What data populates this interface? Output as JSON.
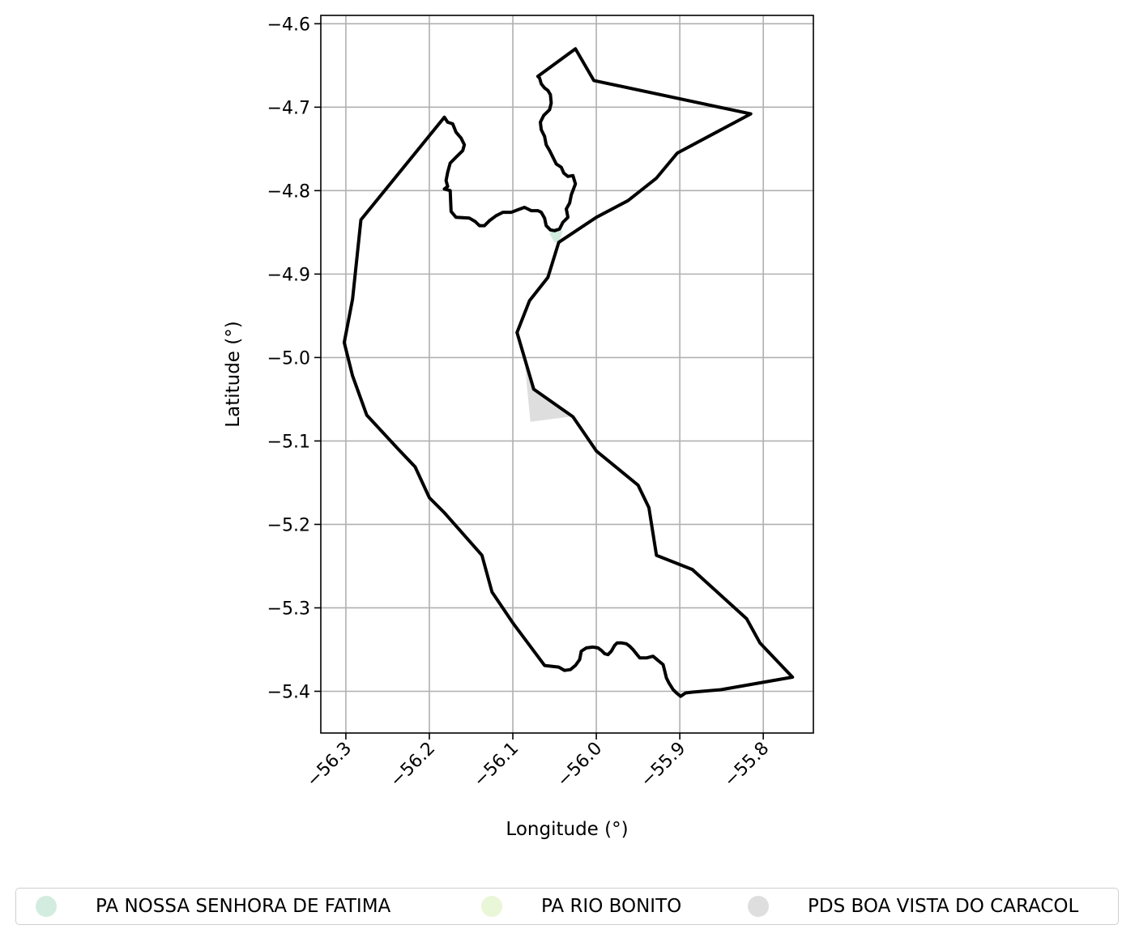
{
  "map": {
    "xlabel": "Longitude (°)",
    "ylabel": "Latitude (°)",
    "xlim": [
      -56.33,
      -55.74
    ],
    "ylim": [
      -5.45,
      -4.59
    ],
    "grid": true,
    "x_ticks": [
      -56.3,
      -56.2,
      -56.1,
      -56.0,
      -55.9,
      -55.8
    ],
    "x_tick_labels": [
      "−56.3",
      "−56.2",
      "−56.1",
      "−56.0",
      "−55.9",
      "−55.8"
    ],
    "y_ticks": [
      -4.6,
      -4.7,
      -4.8,
      -4.9,
      -5.0,
      -5.1,
      -5.2,
      -5.3,
      -5.4
    ],
    "y_tick_labels": [
      "−4.6",
      "−4.7",
      "−4.8",
      "−4.9",
      "−5.0",
      "−5.1",
      "−5.2",
      "−5.3",
      "−5.4"
    ],
    "boundary_color": "#000000",
    "boundary": [
      [
        -56.282,
        -4.835
      ],
      [
        -56.182,
        -4.712
      ],
      [
        -56.178,
        -4.718
      ],
      [
        -56.172,
        -4.72
      ],
      [
        -56.168,
        -4.73
      ],
      [
        -56.162,
        -4.737
      ],
      [
        -56.158,
        -4.745
      ],
      [
        -56.16,
        -4.752
      ],
      [
        -56.168,
        -4.76
      ],
      [
        -56.175,
        -4.767
      ],
      [
        -56.178,
        -4.778
      ],
      [
        -56.18,
        -4.788
      ],
      [
        -56.178,
        -4.795
      ],
      [
        -56.182,
        -4.798
      ],
      [
        -56.175,
        -4.8
      ],
      [
        -56.174,
        -4.825
      ],
      [
        -56.168,
        -4.832
      ],
      [
        -56.152,
        -4.833
      ],
      [
        -56.145,
        -4.837
      ],
      [
        -56.14,
        -4.842
      ],
      [
        -56.134,
        -4.842
      ],
      [
        -56.128,
        -4.836
      ],
      [
        -56.12,
        -4.83
      ],
      [
        -56.112,
        -4.826
      ],
      [
        -56.102,
        -4.826
      ],
      [
        -56.094,
        -4.823
      ],
      [
        -56.086,
        -4.82
      ],
      [
        -56.078,
        -4.824
      ],
      [
        -56.07,
        -4.824
      ],
      [
        -56.066,
        -4.826
      ],
      [
        -56.062,
        -4.833
      ],
      [
        -56.06,
        -4.842
      ],
      [
        -56.055,
        -4.847
      ],
      [
        -56.05,
        -4.848
      ],
      [
        -56.044,
        -4.846
      ],
      [
        -56.04,
        -4.838
      ],
      [
        -56.034,
        -4.832
      ],
      [
        -56.036,
        -4.822
      ],
      [
        -56.032,
        -4.815
      ],
      [
        -56.03,
        -4.805
      ],
      [
        -56.025,
        -4.792
      ],
      [
        -56.028,
        -4.782
      ],
      [
        -56.034,
        -4.783
      ],
      [
        -56.039,
        -4.779
      ],
      [
        -56.042,
        -4.772
      ],
      [
        -56.048,
        -4.768
      ],
      [
        -56.052,
        -4.76
      ],
      [
        -56.056,
        -4.752
      ],
      [
        -56.06,
        -4.745
      ],
      [
        -56.062,
        -4.735
      ],
      [
        -56.066,
        -4.727
      ],
      [
        -56.067,
        -4.718
      ],
      [
        -56.063,
        -4.71
      ],
      [
        -56.056,
        -4.703
      ],
      [
        -56.054,
        -4.695
      ],
      [
        -56.055,
        -4.685
      ],
      [
        -56.058,
        -4.68
      ],
      [
        -56.062,
        -4.677
      ],
      [
        -56.066,
        -4.672
      ],
      [
        -56.068,
        -4.665
      ],
      [
        -56.07,
        -4.663
      ],
      [
        -56.025,
        -4.63
      ],
      [
        -56.003,
        -4.668
      ],
      [
        -55.815,
        -4.708
      ],
      [
        -55.903,
        -4.755
      ],
      [
        -55.928,
        -4.785
      ],
      [
        -55.962,
        -4.812
      ],
      [
        -56.0,
        -4.832
      ],
      [
        -56.045,
        -4.862
      ],
      [
        -56.058,
        -4.904
      ],
      [
        -56.08,
        -4.932
      ],
      [
        -56.095,
        -4.97
      ],
      [
        -56.075,
        -5.038
      ],
      [
        -56.028,
        -5.071
      ],
      [
        -56.0,
        -5.112
      ],
      [
        -55.95,
        -5.153
      ],
      [
        -55.937,
        -5.18
      ],
      [
        -55.928,
        -5.237
      ],
      [
        -55.885,
        -5.254
      ],
      [
        -55.82,
        -5.313
      ],
      [
        -55.804,
        -5.342
      ],
      [
        -55.765,
        -5.383
      ],
      [
        -55.85,
        -5.398
      ],
      [
        -55.885,
        -5.401
      ],
      [
        -55.893,
        -5.402
      ],
      [
        -55.899,
        -5.406
      ],
      [
        -55.904,
        -5.402
      ],
      [
        -55.908,
        -5.398
      ],
      [
        -55.913,
        -5.39
      ],
      [
        -55.916,
        -5.384
      ],
      [
        -55.918,
        -5.376
      ],
      [
        -55.92,
        -5.368
      ],
      [
        -55.926,
        -5.363
      ],
      [
        -55.932,
        -5.358
      ],
      [
        -55.94,
        -5.36
      ],
      [
        -55.948,
        -5.36
      ],
      [
        -55.952,
        -5.355
      ],
      [
        -55.956,
        -5.35
      ],
      [
        -55.96,
        -5.346
      ],
      [
        -55.964,
        -5.343
      ],
      [
        -55.97,
        -5.342
      ],
      [
        -55.975,
        -5.342
      ],
      [
        -55.978,
        -5.345
      ],
      [
        -55.982,
        -5.352
      ],
      [
        -55.986,
        -5.356
      ],
      [
        -55.99,
        -5.355
      ],
      [
        -55.994,
        -5.351
      ],
      [
        -55.998,
        -5.348
      ],
      [
        -56.004,
        -5.347
      ],
      [
        -56.012,
        -5.348
      ],
      [
        -56.018,
        -5.352
      ],
      [
        -56.02,
        -5.362
      ],
      [
        -56.025,
        -5.369
      ],
      [
        -56.031,
        -5.374
      ],
      [
        -56.038,
        -5.375
      ],
      [
        -56.045,
        -5.371
      ],
      [
        -56.062,
        -5.369
      ],
      [
        -56.1,
        -5.318
      ],
      [
        -56.125,
        -5.281
      ],
      [
        -56.137,
        -5.237
      ],
      [
        -56.182,
        -5.186
      ],
      [
        -56.2,
        -5.168
      ],
      [
        -56.217,
        -5.131
      ],
      [
        -56.237,
        -5.11
      ],
      [
        -56.275,
        -5.069
      ],
      [
        -56.292,
        -5.022
      ],
      [
        -56.302,
        -4.982
      ],
      [
        -56.292,
        -4.93
      ],
      [
        -56.282,
        -4.835
      ]
    ],
    "regions": [
      {
        "name": "PA NOSSA SENHORA DE FATIMA",
        "color": "#d3ece0",
        "polygon": [
          [
            -56.055,
            -4.848
          ],
          [
            -56.04,
            -4.848
          ],
          [
            -56.045,
            -4.862
          ],
          [
            -56.05,
            -4.862
          ],
          [
            -56.056,
            -4.852
          ]
        ]
      },
      {
        "name": "PA RIO BONITO",
        "color": "#eaf6d8",
        "polygon": []
      },
      {
        "name": "PDS BOA VISTA DO CARACOL",
        "color": "#dedede",
        "polygon": [
          [
            -56.086,
            -5.0
          ],
          [
            -56.075,
            -5.038
          ],
          [
            -56.032,
            -5.071
          ],
          [
            -56.079,
            -5.077
          ],
          [
            -56.083,
            -5.035
          ]
        ]
      }
    ]
  },
  "legend": {
    "placement": "bottom-center",
    "items": [
      {
        "label": "PA NOSSA SENHORA DE FATIMA",
        "color": "#d3ece0"
      },
      {
        "label": "PA RIO BONITO",
        "color": "#eaf6d8"
      },
      {
        "label": "PDS BOA VISTA DO CARACOL",
        "color": "#dedede"
      }
    ]
  }
}
